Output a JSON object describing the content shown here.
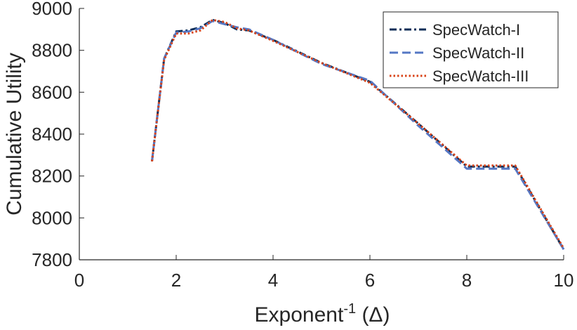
{
  "chart_data": {
    "type": "line",
    "xlabel_main": "Exponent",
    "xlabel_sup": "-1",
    "xlabel_tail": " (Δ)",
    "ylabel": "Cumulative Utility",
    "xlim": [
      0,
      10
    ],
    "ylim": [
      7800,
      9000
    ],
    "xticks": [
      0,
      2,
      4,
      6,
      8,
      10
    ],
    "yticks": [
      7800,
      8000,
      8200,
      8400,
      8600,
      8800,
      9000
    ],
    "grid": false,
    "legend_position": "top-right",
    "series": [
      {
        "name": "SpecWatch-I",
        "color": "#0d2d57",
        "dash": "dashdot",
        "x": [
          1.5,
          1.75,
          2.0,
          2.25,
          2.5,
          2.75,
          3.0,
          3.25,
          3.5,
          4.0,
          5.0,
          6.0,
          7.0,
          8.0,
          9.0,
          10.0
        ],
        "y": [
          8270,
          8760,
          8890,
          8895,
          8910,
          8945,
          8930,
          8900,
          8895,
          8850,
          8740,
          8650,
          8450,
          8245,
          8245,
          7850
        ]
      },
      {
        "name": "SpecWatch-II",
        "color": "#5577c4",
        "dash": "dash",
        "x": [
          1.5,
          1.75,
          2.0,
          2.25,
          2.5,
          2.75,
          3.0,
          3.25,
          3.5,
          4.0,
          5.0,
          6.0,
          7.0,
          8.0,
          9.0,
          10.0
        ],
        "y": [
          8270,
          8760,
          8885,
          8890,
          8905,
          8940,
          8925,
          8910,
          8900,
          8850,
          8735,
          8655,
          8440,
          8235,
          8235,
          7850
        ]
      },
      {
        "name": "SpecWatch-III",
        "color": "#d9441a",
        "dash": "dot",
        "x": [
          1.5,
          1.75,
          2.0,
          2.25,
          2.5,
          2.75,
          3.0,
          3.25,
          3.5,
          4.0,
          5.0,
          6.0,
          7.0,
          8.0,
          9.0,
          10.0
        ],
        "y": [
          8270,
          8755,
          8880,
          8880,
          8895,
          8945,
          8935,
          8905,
          8895,
          8845,
          8740,
          8645,
          8450,
          8250,
          8250,
          7855
        ]
      }
    ]
  }
}
